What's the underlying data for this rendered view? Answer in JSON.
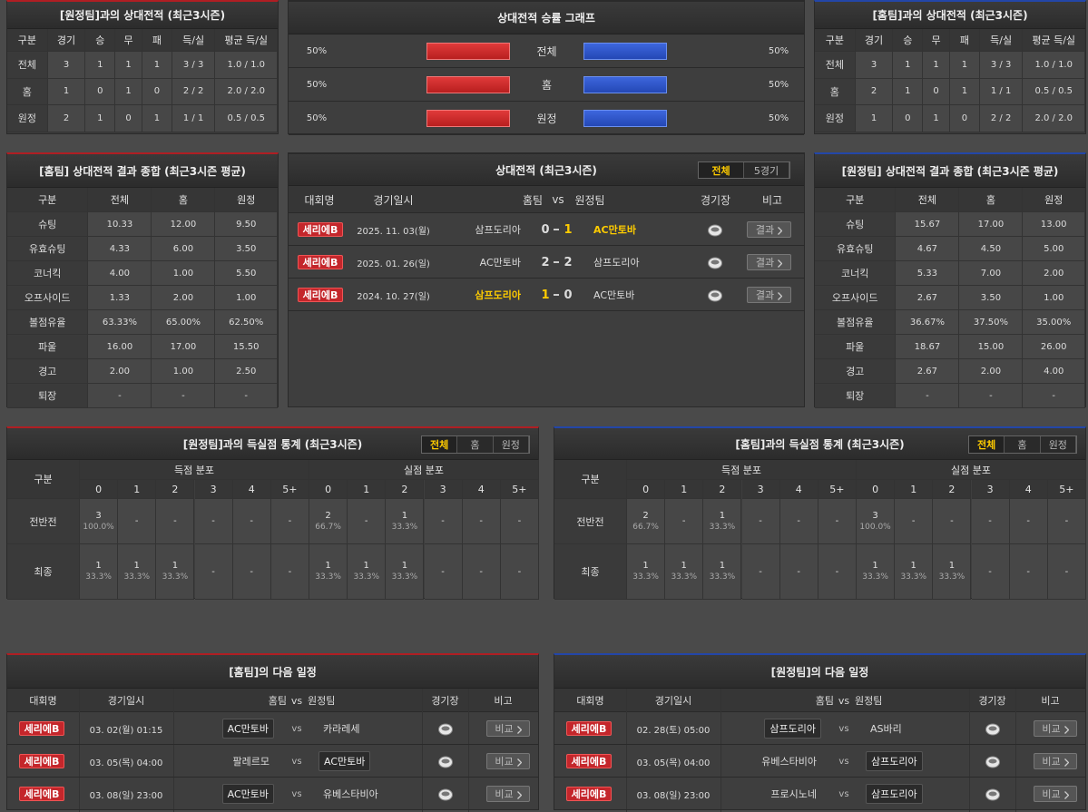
{
  "h2h_away": {
    "title": "[원정팀]과의 상대전적 (최근3시즌)",
    "columns": [
      "구분",
      "경기",
      "승",
      "무",
      "패",
      "득/실",
      "평균 득/실"
    ],
    "rows": [
      [
        "전체",
        3,
        1,
        1,
        1,
        "3 / 3",
        "1.0 / 1.0"
      ],
      [
        "홈",
        1,
        0,
        1,
        0,
        "2 / 2",
        "2.0 / 2.0"
      ],
      [
        "원정",
        2,
        1,
        0,
        1,
        "1 / 1",
        "0.5 / 0.5"
      ]
    ]
  },
  "win_graph": {
    "title": "상대전적 승률 그래프",
    "rows": [
      {
        "label": "전체",
        "home": {
          "value": 50,
          "label": "50%"
        },
        "away": {
          "value": 50,
          "label": "50%"
        }
      },
      {
        "label": "홈",
        "home": {
          "value": 50,
          "label": "50%"
        },
        "away": {
          "value": 50,
          "label": "50%"
        }
      },
      {
        "label": "원정",
        "home": {
          "value": 50,
          "label": "50%"
        },
        "away": {
          "value": 50,
          "label": "50%"
        }
      }
    ]
  },
  "h2h_home": {
    "title": "[홈팀]과의 상대전적 (최근3시즌)",
    "columns": [
      "구분",
      "경기",
      "승",
      "무",
      "패",
      "득/실",
      "평균 득/실"
    ],
    "rows": [
      [
        "전체",
        3,
        1,
        1,
        1,
        "3 / 3",
        "1.0 / 1.0"
      ],
      [
        "홈",
        2,
        1,
        0,
        1,
        "1 / 1",
        "0.5 / 0.5"
      ],
      [
        "원정",
        1,
        0,
        1,
        0,
        "2 / 2",
        "2.0 / 2.0"
      ]
    ]
  },
  "summary_home": {
    "title": "[홈팀] 상대전적 결과 종합 (최근3시즌 평균)",
    "columns": [
      "구분",
      "전체",
      "홈",
      "원정"
    ],
    "rows": [
      [
        "슈팅",
        "10.33",
        "12.00",
        "9.50"
      ],
      [
        "유효슈팅",
        "4.33",
        "6.00",
        "3.50"
      ],
      [
        "코너킥",
        "4.00",
        "1.00",
        "5.50"
      ],
      [
        "오프사이드",
        "1.33",
        "2.00",
        "1.00"
      ],
      [
        "볼점유율",
        "63.33%",
        "65.00%",
        "62.50%"
      ],
      [
        "파울",
        "16.00",
        "17.00",
        "15.50"
      ],
      [
        "경고",
        "2.00",
        "1.00",
        "2.50"
      ],
      [
        "퇴장",
        "-",
        "-",
        "-"
      ]
    ]
  },
  "recent": {
    "title": "상대전적 (최근3시즌)",
    "tabs": [
      "전체",
      "5경기"
    ],
    "columns": [
      "대회명",
      "경기일시",
      "홈팀",
      "vs",
      "원정팀",
      "경기장",
      "비고"
    ],
    "button": "결과",
    "rows": [
      {
        "league": "세리에B",
        "date": "2025. 11. 03(월)",
        "home": "삼프도리아",
        "home_score": 0,
        "away_score": 1,
        "away": "AC만토바"
      },
      {
        "league": "세리에B",
        "date": "2025. 01. 26(일)",
        "home": "AC만토바",
        "home_score": 2,
        "away_score": 2,
        "away": "삼프도리아"
      },
      {
        "league": "세리에B",
        "date": "2024. 10. 27(일)",
        "home": "삼프도리아",
        "home_score": 1,
        "away_score": 0,
        "away": "AC만토바"
      }
    ]
  },
  "summary_away": {
    "title": "[원정팀] 상대전적 결과 종합 (최근3시즌 평균)",
    "columns": [
      "구분",
      "전체",
      "홈",
      "원정"
    ],
    "rows": [
      [
        "슈팅",
        "15.67",
        "17.00",
        "13.00"
      ],
      [
        "유효슈팅",
        "4.67",
        "4.50",
        "5.00"
      ],
      [
        "코너킥",
        "5.33",
        "7.00",
        "2.00"
      ],
      [
        "오프사이드",
        "2.67",
        "3.50",
        "1.00"
      ],
      [
        "볼점유율",
        "36.67%",
        "37.50%",
        "35.00%"
      ],
      [
        "파울",
        "18.67",
        "15.00",
        "26.00"
      ],
      [
        "경고",
        "2.67",
        "2.00",
        "4.00"
      ],
      [
        "퇴장",
        "-",
        "-",
        "-"
      ]
    ]
  },
  "goals_away": {
    "title": "[원정팀]과의 득실점 통계 (최근3시즌)",
    "tabs": [
      "전체",
      "홈",
      "원정"
    ],
    "columns": {
      "label": "구분",
      "scored": "득점 분포",
      "conceded": "실점 분포",
      "buckets": [
        "0",
        "1",
        "2",
        "3",
        "4",
        "5+"
      ]
    },
    "rows": [
      {
        "label": "전반전",
        "scored": [
          {
            "count": 3,
            "pct": "100.0%"
          },
          "-",
          "-",
          "-",
          "-",
          "-"
        ],
        "conceded": [
          {
            "count": 2,
            "pct": "66.7%"
          },
          "-",
          {
            "count": 1,
            "pct": "33.3%"
          },
          "-",
          "-",
          "-"
        ]
      },
      {
        "label": "최종",
        "scored": [
          {
            "count": 1,
            "pct": "33.3%"
          },
          {
            "count": 1,
            "pct": "33.3%"
          },
          {
            "count": 1,
            "pct": "33.3%"
          },
          "-",
          "-",
          "-"
        ],
        "conceded": [
          {
            "count": 1,
            "pct": "33.3%"
          },
          {
            "count": 1,
            "pct": "33.3%"
          },
          {
            "count": 1,
            "pct": "33.3%"
          },
          "-",
          "-",
          "-"
        ]
      }
    ]
  },
  "goals_home": {
    "title": "[홈팀]과의 득실점 통계 (최근3시즌)",
    "tabs": [
      "전체",
      "홈",
      "원정"
    ],
    "columns": {
      "label": "구분",
      "scored": "득점 분포",
      "conceded": "실점 분포",
      "buckets": [
        "0",
        "1",
        "2",
        "3",
        "4",
        "5+"
      ]
    },
    "rows": [
      {
        "label": "전반전",
        "scored": [
          {
            "count": 2,
            "pct": "66.7%"
          },
          "-",
          {
            "count": 1,
            "pct": "33.3%"
          },
          "-",
          "-",
          "-"
        ],
        "conceded": [
          {
            "count": 3,
            "pct": "100.0%"
          },
          "-",
          "-",
          "-",
          "-",
          "-"
        ]
      },
      {
        "label": "최종",
        "scored": [
          {
            "count": 1,
            "pct": "33.3%"
          },
          {
            "count": 1,
            "pct": "33.3%"
          },
          {
            "count": 1,
            "pct": "33.3%"
          },
          "-",
          "-",
          "-"
        ],
        "conceded": [
          {
            "count": 1,
            "pct": "33.3%"
          },
          {
            "count": 1,
            "pct": "33.3%"
          },
          {
            "count": 1,
            "pct": "33.3%"
          },
          "-",
          "-",
          "-"
        ]
      }
    ]
  },
  "next_home": {
    "title": "[홈팀]의 다음 일정",
    "columns": [
      "대회명",
      "경기일시",
      "홈팀",
      "vs",
      "원정팀",
      "경기장",
      "비고"
    ],
    "vs": "vs",
    "button": "비교",
    "rows": [
      {
        "league": "세리에B",
        "date": "03. 02(월) 01:15",
        "home": "AC만토바",
        "away": "카라레세",
        "highlight": "home"
      },
      {
        "league": "세리에B",
        "date": "03. 05(목) 04:00",
        "home": "팔레르모",
        "away": "AC만토바",
        "highlight": "away"
      },
      {
        "league": "세리에B",
        "date": "03. 08(일) 23:00",
        "home": "AC만토바",
        "away": "유베스타비아",
        "highlight": "home"
      }
    ]
  },
  "next_away": {
    "title": "[원정팀]의 다음 일정",
    "columns": [
      "대회명",
      "경기일시",
      "홈팀",
      "vs",
      "원정팀",
      "경기장",
      "비고"
    ],
    "vs": "vs",
    "button": "비교",
    "rows": [
      {
        "league": "세리에B",
        "date": "02. 28(토) 05:00",
        "home": "삼프도리아",
        "away": "AS바리",
        "highlight": "home"
      },
      {
        "league": "세리에B",
        "date": "03. 05(목) 04:00",
        "home": "유베스타비아",
        "away": "삼프도리아",
        "highlight": "away"
      },
      {
        "league": "세리에B",
        "date": "03. 08(일) 23:00",
        "home": "프로시노네",
        "away": "삼프도리아",
        "highlight": "away"
      }
    ]
  }
}
